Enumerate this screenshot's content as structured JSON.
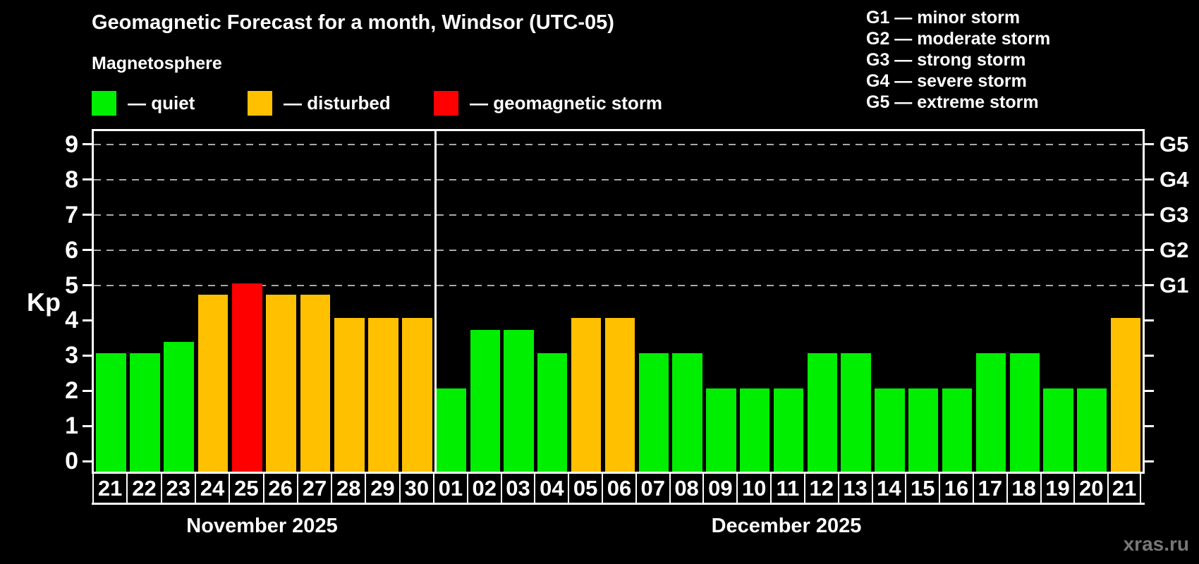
{
  "title": "Geomagnetic Forecast for a month, Windsor (UTC-05)",
  "subtitle": "Magnetosphere",
  "watermark": "xras.ru",
  "legend": [
    {
      "key": "quiet",
      "label": "— quiet",
      "color": "#00ee00"
    },
    {
      "key": "disturbed",
      "label": "— disturbed",
      "color": "#ffc000"
    },
    {
      "key": "storm",
      "label": "— geomagnetic storm",
      "color": "#ff0000"
    }
  ],
  "g_scale_legend": [
    "G1 — minor storm",
    "G2 — moderate storm",
    "G3 — strong storm",
    "G4 — severe storm",
    "G5 — extreme storm"
  ],
  "chart_data": {
    "type": "bar",
    "title": "Geomagnetic Forecast for a month, Windsor (UTC-05)",
    "ylabel": "Kp",
    "ylim": [
      0,
      9.4
    ],
    "yticks": [
      0,
      1,
      2,
      3,
      4,
      5,
      6,
      7,
      8,
      9
    ],
    "gridlines": [
      5,
      6,
      7,
      8,
      9
    ],
    "grid_color": "#a8a8a8",
    "right_axis": [
      {
        "kp": 5,
        "label": "G1"
      },
      {
        "kp": 6,
        "label": "G2"
      },
      {
        "kp": 7,
        "label": "G3"
      },
      {
        "kp": 8,
        "label": "G4"
      },
      {
        "kp": 9,
        "label": "G5"
      }
    ],
    "status_colors": {
      "quiet": "#00ee00",
      "disturbed": "#ffc000",
      "storm": "#ff0000"
    },
    "months": [
      {
        "label": "November 2025",
        "days": [
          "21",
          "22",
          "23",
          "24",
          "25",
          "26",
          "27",
          "28",
          "29",
          "30"
        ],
        "values": [
          3,
          3,
          3.33,
          4.67,
          5,
          4.67,
          4.67,
          4,
          4,
          4
        ],
        "statuses": [
          "quiet",
          "quiet",
          "quiet",
          "disturbed",
          "storm",
          "disturbed",
          "disturbed",
          "disturbed",
          "disturbed",
          "disturbed"
        ]
      },
      {
        "label": "December 2025",
        "days": [
          "01",
          "02",
          "03",
          "04",
          "05",
          "06",
          "07",
          "08",
          "09",
          "10",
          "11",
          "12",
          "13",
          "14",
          "15",
          "16",
          "17",
          "18",
          "19",
          "20",
          "21"
        ],
        "values": [
          2,
          3.67,
          3.67,
          3,
          4,
          4,
          3,
          3,
          2,
          2,
          2,
          3,
          3,
          2,
          2,
          2,
          3,
          3,
          2,
          2,
          4
        ],
        "statuses": [
          "quiet",
          "quiet",
          "quiet",
          "quiet",
          "disturbed",
          "disturbed",
          "quiet",
          "quiet",
          "quiet",
          "quiet",
          "quiet",
          "quiet",
          "quiet",
          "quiet",
          "quiet",
          "quiet",
          "quiet",
          "quiet",
          "quiet",
          "quiet",
          "disturbed"
        ]
      }
    ]
  }
}
